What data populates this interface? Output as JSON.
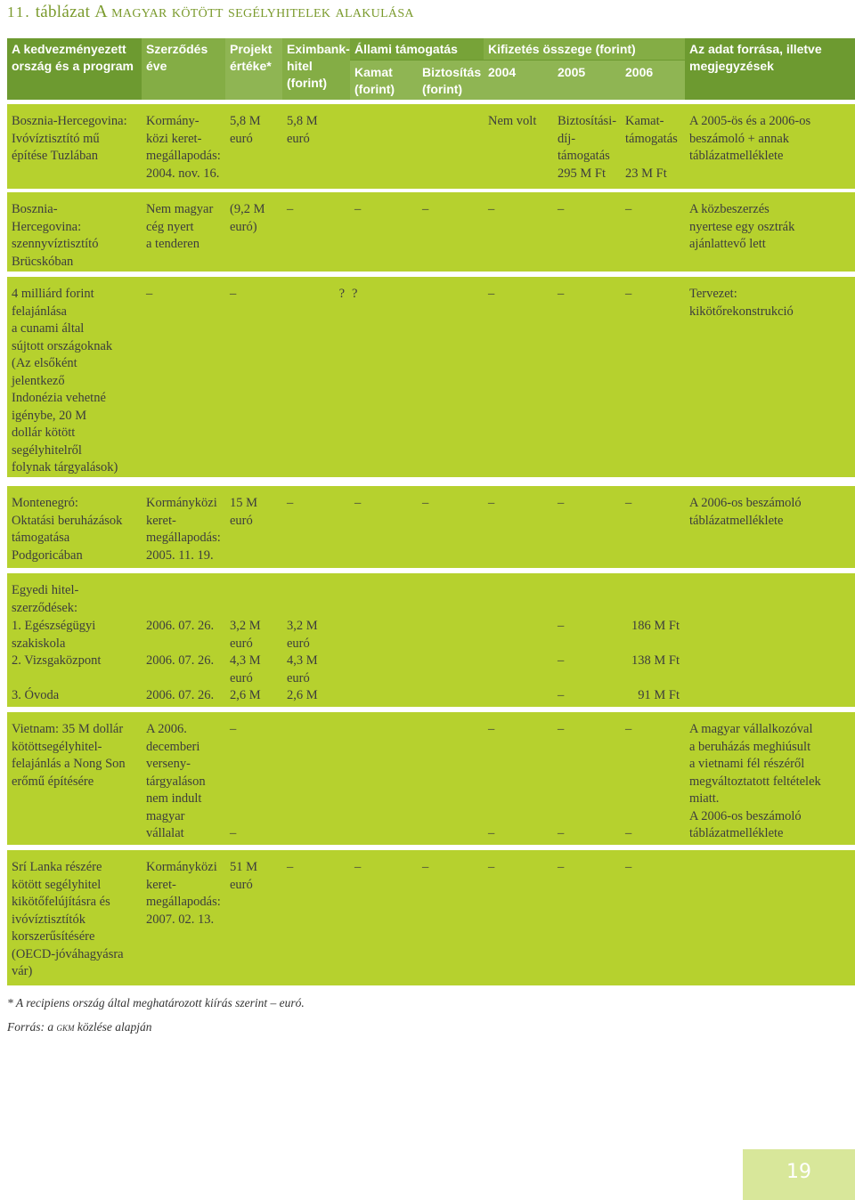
{
  "title": {
    "number": "11.",
    "word": "táblázat",
    "caption": "A magyar kötött segélyhitelek alakulása"
  },
  "header": {
    "col1": "A kedvezményezett ország és a program",
    "col2": "Szerződés éve",
    "col3": "Projekt értéke*",
    "col4": "Eximbank-hitel (forint)",
    "state_support": "Állami támogatás",
    "interest": "Kamat (forint)",
    "insurance": "Biztosítás (forint)",
    "payout": "Kifizetés összege (forint)",
    "y2004": "2004",
    "y2005": "2005",
    "y2006": "2006",
    "source": "Az adat forrása, illetve megjegyzések"
  },
  "rows": [
    {
      "country": "Bosznia-Hercegovina: Ivóvíztisztító mű építése Tuzlában",
      "year": "Kormány-\nközi keret-\nmegállapodás:\n2004. nov. 16.",
      "value": "5,8 M\neuró",
      "exim": "5,8 M\neuró",
      "kamat": "",
      "biztositas": "",
      "y2004": "Nem volt",
      "y2005": "Biztosítási-\ndíj-\ntámogatás\n295 M Ft",
      "y2006": "Kamat-\ntámogatás\n\n23 M Ft",
      "note": "A 2005-ös és a 2006-os beszámoló + annak táblázatmelléklete"
    },
    {
      "country": "Bosznia-\nHercegovina:\nszennyvíztisztító\nBrücskóban",
      "year": "Nem magyar\ncég nyert\na tenderen",
      "value": "(9,2 M\neuró)",
      "exim": "–",
      "kamat": "–",
      "biztositas": "–",
      "y2004": "–",
      "y2005": "–",
      "y2006": "–",
      "note": "A közbeszerzés\nnyertese egy osztrák\najánlattevő lett"
    },
    {
      "country": "4 milliárd forint\nfelajánlása\na cunami által\nsújtott országoknak\n(Az elsőként\njelentkező\nIndonézia vehetné\nigénybe, 20 M\ndollár kötött\nsegélyhitelről\nfolynak tárgyalások)",
      "year": "–",
      "value": "–",
      "exim": "?",
      "kamat": "?",
      "biztositas": "",
      "y2004": "–",
      "y2005": "–",
      "y2006": "–",
      "note": "Tervezet:\nkikötőrekonstrukció"
    },
    {
      "country": "Montenegró:\nOktatási beruházások\ntámogatása\nPodgoricában",
      "year": "Kormányközi\nkeret-\nmegállapodás:\n2005. 11. 19.",
      "value": "15 M\neuró",
      "exim": "–",
      "kamat": "–",
      "biztositas": "–",
      "y2004": "–",
      "y2005": "–",
      "y2006": "–",
      "note": "A 2006-os beszámoló\ntáblázatmelléklete"
    }
  ],
  "individual": {
    "heading": "Egyedi hitel-\nszerződések:",
    "items": [
      {
        "label": "1. Egészségügyi\n    szakiskola",
        "year": "2006. 07. 26.",
        "value": "3,2 M\neuró",
        "exim": "3,2 M\neuró",
        "y2005": "–",
        "y2006": "186 M Ft"
      },
      {
        "label": "2. Vizsgaközpont",
        "year": "2006. 07. 26.",
        "value": "4,3 M\neuró",
        "exim": "4,3 M\neuró",
        "y2005": "–",
        "y2006": "138 M Ft"
      },
      {
        "label": "3. Óvoda",
        "year": "2006. 07. 26.",
        "value": "2,6 M",
        "exim": "2,6 M",
        "y2005": "–",
        "y2006": "91 M Ft"
      }
    ]
  },
  "vietnam": {
    "country": "Vietnam: 35 M dollár\nkötöttsegélyhitel-\nfelajánlás a Nong Son\nerőmű építésére",
    "year": "A 2006.\ndecemberi\nverseny-\ntárgyaláson\nnem indult\nmagyar\nvállalat",
    "dash_top": "–",
    "dash_bottom": "–",
    "note": "A magyar vállalkozóval\na beruházás meghiúsult\na vietnami fél részéről\nmegváltoztatott feltételek\nmiatt.\nA 2006-os beszámoló\ntáblázatmelléklete"
  },
  "srilanka": {
    "country": "Srí Lanka részére\nkötött segélyhitel\nkikötőfelújításra és\nivóvíztisztítók\nkorszerűsítésére\n(OECD-jóváhagyásra\nvár)",
    "year": "Kormányközi\nkeret-\nmegállapodás:\n2007. 02. 13.",
    "value": "51 M\neuró",
    "dash": "–"
  },
  "footnote": "* A recipiens ország által meghatározott kiírás szerint – euró.",
  "source_prefix": "Forrás: a",
  "source_abbr": "gkm",
  "source_suffix": "közlése alapján",
  "page_number": "19",
  "colors": {
    "header": "#6d9a30",
    "row": "#b6d12e",
    "title": "#7a9a2c",
    "page_box": "#d8e79a"
  }
}
